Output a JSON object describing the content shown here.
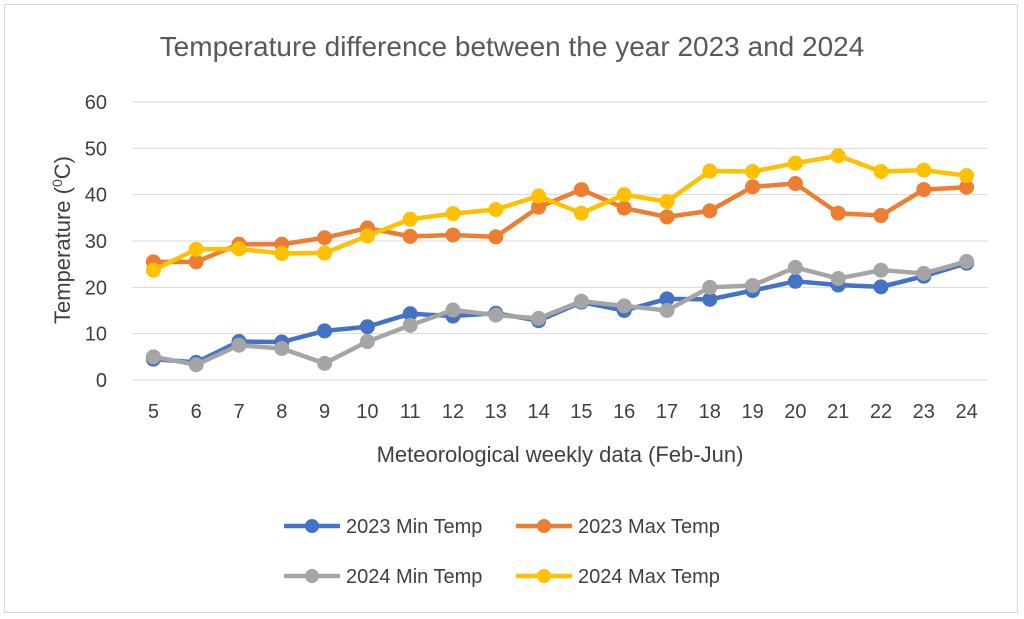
{
  "chart_data": {
    "type": "line",
    "title": "Temperature difference between the year 2023 and 2024",
    "xlabel": "Meteorological weekly data (Feb-Jun)",
    "ylabel_main": "Temperature (",
    "ylabel_sup": "0",
    "ylabel_tail": "C)",
    "ylim": [
      0,
      60
    ],
    "yticks": [
      0,
      10,
      20,
      30,
      40,
      50,
      60
    ],
    "grid": true,
    "legend_position": "bottom",
    "x": [
      5,
      6,
      7,
      8,
      9,
      10,
      11,
      12,
      13,
      14,
      15,
      16,
      17,
      18,
      19,
      20,
      21,
      22,
      23,
      24
    ],
    "series": [
      {
        "name": "2023 Min Temp",
        "color": "#4472c4",
        "values": [
          4.5,
          3.8,
          8.3,
          8.2,
          10.6,
          11.5,
          14.3,
          13.8,
          14.4,
          12.8,
          16.8,
          15.0,
          17.5,
          17.4,
          19.3,
          21.3,
          20.5,
          20.1,
          22.4,
          25.2
        ]
      },
      {
        "name": "2023 Max Temp",
        "color": "#ed7d31",
        "values": [
          25.5,
          25.5,
          29.3,
          29.3,
          30.7,
          32.8,
          31.0,
          31.3,
          30.9,
          37.3,
          41.1,
          37.1,
          35.2,
          36.5,
          41.7,
          42.4,
          36.0,
          35.5,
          41.1,
          41.6
        ]
      },
      {
        "name": "2024 Min Temp",
        "color": "#a5a5a5",
        "values": [
          5.0,
          3.3,
          7.5,
          6.8,
          3.6,
          8.3,
          11.8,
          15.1,
          14.0,
          13.3,
          17.0,
          16.0,
          15.0,
          20.0,
          20.4,
          24.3,
          21.9,
          23.7,
          23.0,
          25.6
        ]
      },
      {
        "name": "2024 Max Temp",
        "color": "#ffc000",
        "values": [
          23.7,
          28.2,
          28.3,
          27.3,
          27.4,
          31.1,
          34.7,
          35.9,
          36.8,
          39.7,
          36.0,
          40.0,
          38.5,
          45.1,
          45.0,
          46.8,
          48.4,
          45.0,
          45.3,
          44.1
        ]
      }
    ]
  }
}
